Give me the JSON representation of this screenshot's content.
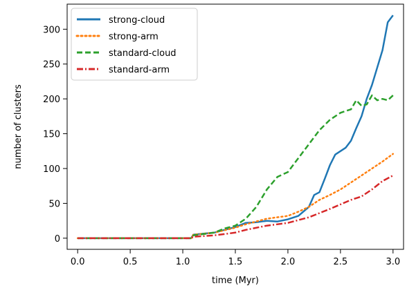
{
  "chart_data": {
    "type": "line",
    "title": "",
    "xlabel": "time (Myr)",
    "ylabel": "number of clusters",
    "xlim": [
      -0.1,
      3.1
    ],
    "ylim": [
      -16,
      336
    ],
    "xticks": [
      0.0,
      0.5,
      1.0,
      1.5,
      2.0,
      2.5,
      3.0
    ],
    "xtick_labels": [
      "0.0",
      "0.5",
      "1.0",
      "1.5",
      "2.0",
      "2.5",
      "3.0"
    ],
    "yticks": [
      0,
      50,
      100,
      150,
      200,
      250,
      300
    ],
    "ytick_labels": [
      "0",
      "50",
      "100",
      "150",
      "200",
      "250",
      "300"
    ],
    "grid": false,
    "legend_position": "top-left",
    "series": [
      {
        "name": "strong-cloud",
        "color": "#1f77b4",
        "style": "solid",
        "x": [
          0.0,
          1.08,
          1.1,
          1.3,
          1.5,
          1.6,
          1.7,
          1.8,
          1.9,
          2.0,
          2.1,
          2.2,
          2.25,
          2.3,
          2.35,
          2.4,
          2.45,
          2.5,
          2.55,
          2.6,
          2.65,
          2.7,
          2.75,
          2.8,
          2.85,
          2.9,
          2.95,
          3.0
        ],
        "y": [
          0,
          0,
          5,
          8,
          16,
          22,
          23,
          25,
          24,
          27,
          32,
          45,
          62,
          66,
          85,
          105,
          120,
          125,
          130,
          140,
          158,
          175,
          200,
          220,
          245,
          270,
          310,
          320
        ]
      },
      {
        "name": "strong-arm",
        "color": "#ff7f0e",
        "style": "dotted",
        "x": [
          0.0,
          1.08,
          1.1,
          1.3,
          1.5,
          1.6,
          1.8,
          2.0,
          2.1,
          2.2,
          2.3,
          2.4,
          2.5,
          2.6,
          2.7,
          2.8,
          2.9,
          3.0
        ],
        "y": [
          0,
          0,
          5,
          8,
          15,
          20,
          28,
          32,
          38,
          45,
          55,
          62,
          70,
          80,
          90,
          100,
          110,
          121
        ]
      },
      {
        "name": "standard-cloud",
        "color": "#2ca02c",
        "style": "dashed",
        "x": [
          0.0,
          1.08,
          1.1,
          1.3,
          1.4,
          1.5,
          1.6,
          1.7,
          1.8,
          1.9,
          2.0,
          2.1,
          2.2,
          2.3,
          2.4,
          2.5,
          2.6,
          2.65,
          2.7,
          2.75,
          2.8,
          2.85,
          2.9,
          2.95,
          3.0
        ],
        "y": [
          0,
          0,
          4,
          8,
          14,
          18,
          28,
          45,
          70,
          88,
          95,
          115,
          135,
          155,
          170,
          180,
          185,
          198,
          190,
          192,
          205,
          198,
          200,
          198,
          205
        ]
      },
      {
        "name": "standard-arm",
        "color": "#d62728",
        "style": "dashdot",
        "x": [
          0.0,
          1.08,
          1.1,
          1.3,
          1.5,
          1.6,
          1.8,
          2.0,
          2.2,
          2.4,
          2.6,
          2.7,
          2.8,
          2.9,
          3.0
        ],
        "y": [
          0,
          0,
          2,
          4,
          8,
          12,
          18,
          22,
          30,
          42,
          55,
          60,
          70,
          82,
          90
        ]
      }
    ]
  }
}
